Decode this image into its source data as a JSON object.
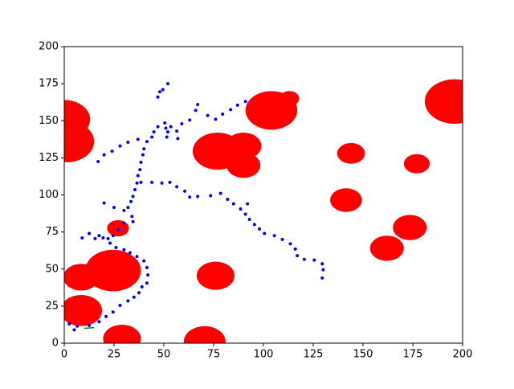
{
  "chart_data": {
    "type": "scatter",
    "xlim": [
      0,
      200
    ],
    "ylim": [
      0,
      200
    ],
    "xticks": [
      0,
      25,
      50,
      75,
      100,
      125,
      150,
      175,
      200
    ],
    "yticks": [
      0,
      25,
      50,
      75,
      100,
      125,
      150,
      175,
      200
    ],
    "obstacles": {
      "color": "#ff0000",
      "x": [
        0,
        1,
        104,
        113,
        196,
        77,
        90,
        90,
        144,
        177,
        141.5,
        173.5,
        162,
        27,
        24.5,
        8.5,
        76,
        8.5,
        29,
        70.5
      ],
      "y": [
        151,
        136,
        157,
        165,
        163,
        129.5,
        133,
        120,
        128,
        121,
        96.5,
        78,
        64,
        77.5,
        49,
        44.5,
        45.5,
        22,
        3,
        1
      ],
      "r": [
        13,
        14,
        13,
        5,
        15,
        12.5,
        9,
        8.5,
        7,
        6.5,
        8,
        8.5,
        8.5,
        5.5,
        14,
        9,
        9.5,
        10.5,
        9.5,
        10.5
      ]
    },
    "series": [
      {
        "color": "#0000ff",
        "x": [
          17,
          20,
          24,
          28,
          32,
          37,
          41.5,
          44,
          45,
          47,
          50.5,
          51,
          51.5,
          52,
          53.5,
          56.5,
          57,
          59,
          63,
          66,
          67,
          72,
          76,
          79.5,
          83.5,
          87,
          91,
          47,
          48,
          49.5,
          52,
          40,
          39.5,
          38.5,
          38,
          37,
          36.5,
          35.5,
          34.5,
          33.5,
          32,
          38.5,
          44,
          49,
          53,
          56.5,
          60.5,
          63,
          67,
          73.5,
          78.5,
          82,
          85,
          88.5,
          92,
          91,
          93,
          95.5,
          98,
          100.5,
          105.5,
          109.5,
          113.5,
          116,
          117,
          120.5,
          125.5,
          129.5,
          130,
          129.5,
          20,
          25,
          30,
          34,
          34.5,
          30,
          27,
          24.5,
          22,
          17.5,
          15.5,
          12.5,
          9,
          19.5,
          23,
          26,
          30,
          33,
          36.5,
          40,
          41.5,
          42,
          41.5,
          39,
          37.5,
          35,
          32,
          28,
          24.5,
          21,
          17.5,
          12.5,
          6.5,
          2.5,
          5
        ],
        "y": [
          122.5,
          127,
          129.5,
          133,
          135.5,
          137.5,
          136,
          139,
          142.5,
          146,
          148.5,
          145,
          139,
          142.5,
          146,
          143,
          138,
          148,
          150.5,
          157,
          161,
          153.5,
          151,
          154.5,
          157.5,
          160.5,
          163,
          166,
          169.5,
          171,
          175,
          131,
          127,
          122,
          117,
          113,
          108,
          103.5,
          99,
          95.5,
          91.5,
          108.5,
          108.5,
          108,
          108.5,
          105.5,
          102.5,
          98.5,
          99,
          99.5,
          101,
          97,
          94,
          90.5,
          94,
          87,
          83.5,
          80,
          77,
          74,
          72.5,
          70,
          67,
          63.5,
          59,
          56.5,
          56,
          53.5,
          49.5,
          44,
          94.5,
          91.5,
          89.5,
          85.5,
          82,
          81,
          76.5,
          72.5,
          70.5,
          72.5,
          70.5,
          74,
          71,
          71,
          67.5,
          64.5,
          63,
          61,
          58.5,
          55.5,
          51,
          46,
          40.5,
          38,
          34,
          31,
          28.5,
          25.5,
          21,
          18,
          14.5,
          12,
          11.5,
          13,
          9
        ]
      },
      {
        "color": "#008000",
        "line": true,
        "x": [
          10,
          15
        ],
        "y": [
          10,
          10.5
        ]
      }
    ]
  }
}
